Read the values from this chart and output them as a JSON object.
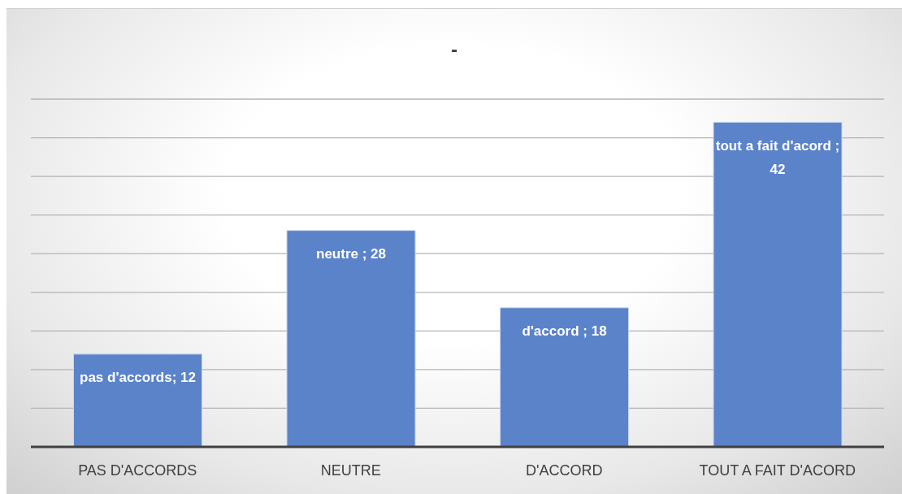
{
  "chart_data": {
    "type": "bar",
    "title": "-",
    "categories": [
      "PAS D'ACCORDS",
      "NEUTRE",
      "D'ACCORD",
      "TOUT A FAIT D'ACORD"
    ],
    "values": [
      12,
      28,
      18,
      42
    ],
    "color": "#5b83c9",
    "value_labels": [
      "pas d'accords; 12",
      "neutre ; 28",
      "d'accord ; 18",
      "tout a fait d'acord ; 42"
    ],
    "ylim": [
      0,
      45
    ],
    "yticks": [
      {
        "value": 0,
        "label": null
      },
      {
        "value": 5,
        "label": null
      },
      {
        "value": 10,
        "label": null
      },
      {
        "value": 15,
        "label": null
      },
      {
        "value": 20,
        "label": null
      },
      {
        "value": 25,
        "label": null
      },
      {
        "value": 30,
        "label": null
      },
      {
        "value": 35,
        "label": null
      },
      {
        "value": 40,
        "label": null
      },
      {
        "value": 45,
        "label": null
      }
    ],
    "grid": "y",
    "tick_labels": "x"
  }
}
